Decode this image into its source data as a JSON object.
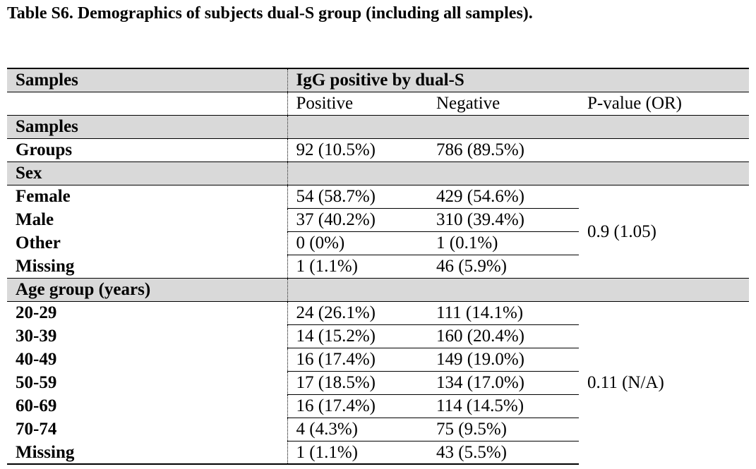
{
  "caption": "Table S6. Demographics of subjects dual-S group (including all samples).",
  "header": {
    "col1": "Samples",
    "group": "IgG positive by dual-S",
    "positive": "Positive",
    "negative": "Negative",
    "pvalue": "P-value (OR)"
  },
  "samples_section": "Samples",
  "groups_row": {
    "label": "Groups",
    "positive": "92 (10.5%)",
    "negative": "786 (89.5%)"
  },
  "sex": {
    "title": "Sex",
    "pvalue": "0.9 (1.05)",
    "rows": [
      {
        "label": "Female",
        "positive": "54 (58.7%)",
        "negative": "429 (54.6%)"
      },
      {
        "label": "Male",
        "positive": "37 (40.2%)",
        "negative": "310 (39.4%)"
      },
      {
        "label": "Other",
        "positive": "0 (0%)",
        "negative": "1 (0.1%)"
      },
      {
        "label": "Missing",
        "positive": "1 (1.1%)",
        "negative": "46 (5.9%)"
      }
    ]
  },
  "age": {
    "title": "Age group (years)",
    "pvalue": "0.11 (N/A)",
    "rows": [
      {
        "label": "20-29",
        "positive": "24 (26.1%)",
        "negative": "111 (14.1%)"
      },
      {
        "label": "30-39",
        "positive": "14 (15.2%)",
        "negative": "160 (20.4%)"
      },
      {
        "label": "40-49",
        "positive": "16 (17.4%)",
        "negative": "149 (19.0%)"
      },
      {
        "label": "50-59",
        "positive": "17 (18.5%)",
        "negative": "134 (17.0%)"
      },
      {
        "label": "60-69",
        "positive": "16 (17.4%)",
        "negative": "114 (14.5%)"
      },
      {
        "label": "70-74",
        "positive": "4 (4.3%)",
        "negative": "75 (9.5%)"
      },
      {
        "label": "Missing",
        "positive": "1 (1.1%)",
        "negative": "43 (5.5%)"
      }
    ]
  }
}
